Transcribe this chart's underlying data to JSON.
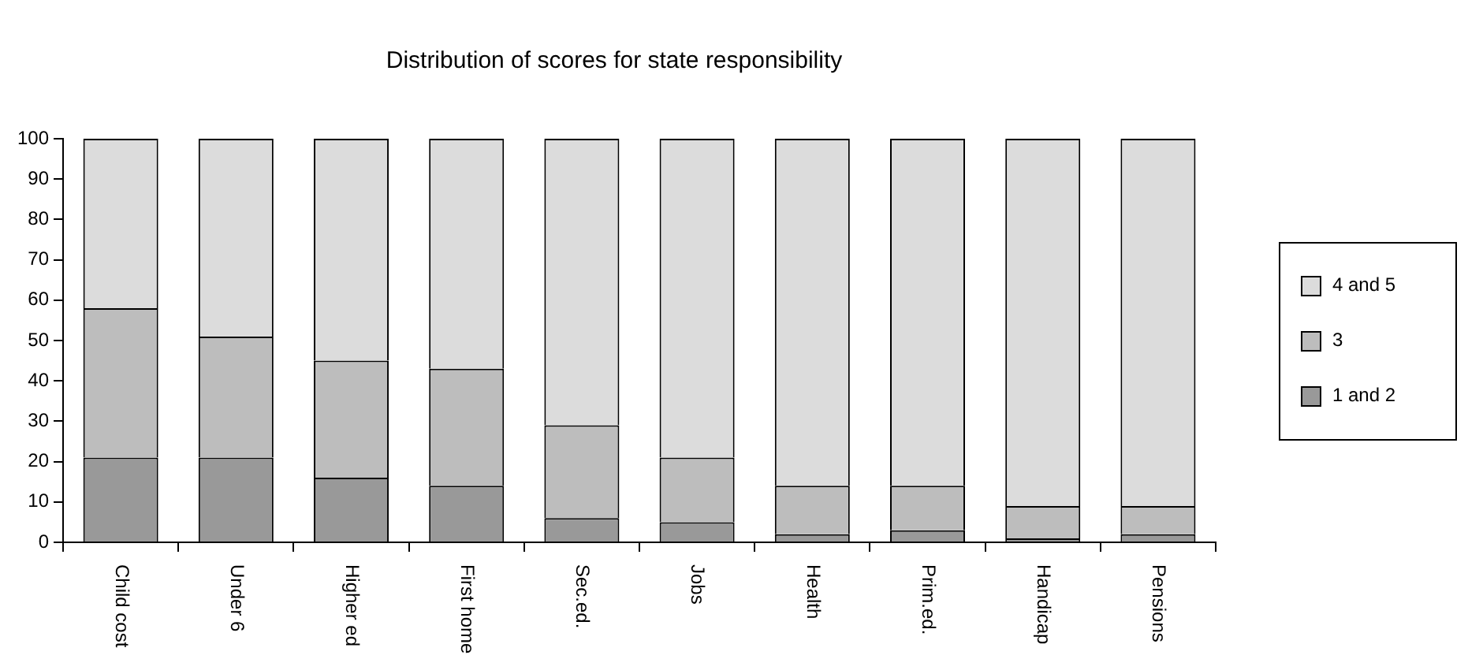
{
  "chart_data": {
    "type": "bar",
    "title": "Distribution of scores for state responsibility",
    "stacked": true,
    "categories": [
      "Child cost",
      "Under 6",
      "Higher ed",
      "First home",
      "Sec.ed.",
      "Jobs",
      "Health",
      "Prim.ed.",
      "Handicap",
      "Pensions"
    ],
    "series": [
      {
        "name": "1 and 2",
        "color": "#999999",
        "values": [
          21,
          21,
          16,
          14,
          6,
          5,
          2,
          3,
          1,
          2
        ]
      },
      {
        "name": "3",
        "color": "#bdbdbd",
        "values": [
          37,
          30,
          29,
          29,
          23,
          16,
          12,
          11,
          8,
          7
        ]
      },
      {
        "name": "4 and 5",
        "color": "#dcdcdc",
        "values": [
          42,
          49,
          55,
          57,
          71,
          79,
          86,
          86,
          91,
          91
        ]
      }
    ],
    "ylim": [
      0,
      100
    ],
    "yticks": [
      0,
      10,
      20,
      30,
      40,
      50,
      60,
      70,
      80,
      90,
      100
    ],
    "grid": false,
    "legend": "right"
  }
}
